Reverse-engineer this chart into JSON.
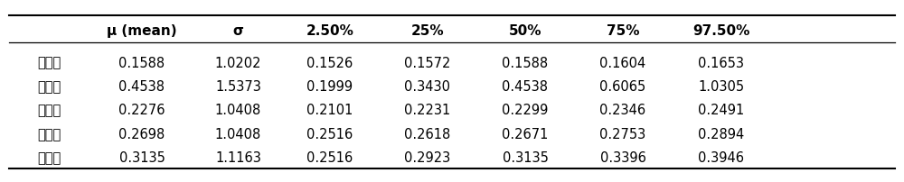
{
  "headers": [
    "μ (mean)",
    "σ",
    "2.50%",
    "25%",
    "50%",
    "75%",
    "97.50%"
  ],
  "row_labels": [
    "安徽省",
    "福建省",
    "贵州省",
    "河南省",
    "湖北省"
  ],
  "table_data": [
    [
      "0.1588",
      "1.0202",
      "0.1526",
      "0.1572",
      "0.1588",
      "0.1604",
      "0.1653"
    ],
    [
      "0.4538",
      "1.5373",
      "0.1999",
      "0.3430",
      "0.4538",
      "0.6065",
      "1.0305"
    ],
    [
      "0.2276",
      "1.0408",
      "0.2101",
      "0.2231",
      "0.2299",
      "0.2346",
      "0.2491"
    ],
    [
      "0.2698",
      "1.0408",
      "0.2516",
      "0.2618",
      "0.2671",
      "0.2753",
      "0.2894"
    ],
    [
      "0.3135",
      "1.1163",
      "0.2516",
      "0.2923",
      "0.3135",
      "0.3396",
      "0.3946"
    ]
  ],
  "bg_color": "#ffffff",
  "header_fontsize": 11,
  "cell_fontsize": 10.5,
  "row_label_fontsize": 10.5,
  "border_color": "#000000",
  "text_color": "#000000"
}
